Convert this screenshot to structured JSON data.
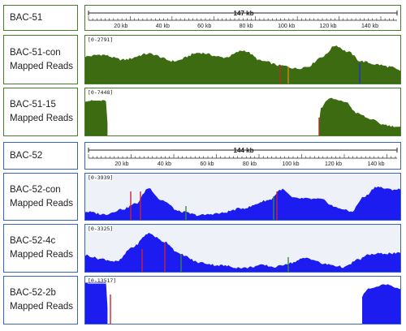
{
  "colors": {
    "green_fill": "#3d6b12",
    "blue_fill": "#1c1cf0",
    "blue_bg": "#eef2f8",
    "green_border": "#4a7a2c",
    "blue_border": "#3a64b8"
  },
  "sample_a": {
    "label": "BAC-51",
    "ruler": {
      "length_label": "147 kb",
      "ticks": [
        "20 kb",
        "40 kb",
        "60 kb",
        "80 kb",
        "100 kb",
        "120 kb",
        "140 kb"
      ]
    },
    "tracks": [
      {
        "label": "BAC-51-con\nMapped Reads",
        "range": "[0-2791]"
      },
      {
        "label": "BAC-51-15\nMapped Reads",
        "range": "[0-7448]"
      }
    ]
  },
  "sample_b": {
    "label": "BAC-52",
    "ruler": {
      "length_label": "144 kb",
      "ticks": [
        "20 kb",
        "40 kb",
        "60 kb",
        "80 kb",
        "100 kb",
        "120 kb",
        "140 kb"
      ]
    },
    "tracks": [
      {
        "label": "BAC-52-con\nMapped Reads",
        "range": "[0-3939]"
      },
      {
        "label": "BAC-52-4c\nMapped Reads",
        "range": "[0-3325]"
      },
      {
        "label": "BAC-52-2b\nMapped Reads",
        "range": "[0-13517]"
      }
    ]
  }
}
